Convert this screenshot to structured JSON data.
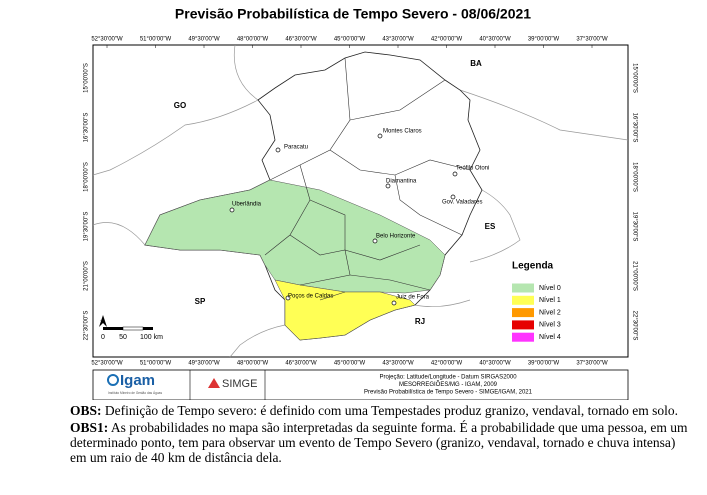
{
  "title": "Previsão Probabilística de Tempo Severo - 08/06/2021",
  "longitude_labels": [
    "52°30'00\"W",
    "51°00'00\"W",
    "49°30'00\"W",
    "48°00'00\"W",
    "46°30'00\"W",
    "45°00'00\"W",
    "43°30'00\"W",
    "42°00'00\"W",
    "40°30'00\"W",
    "39°00'00\"W",
    "37°30'00\"W"
  ],
  "latitude_labels": [
    "15°00'00\"S",
    "16°30'00\"S",
    "18°00'00\"S",
    "19°30'00\"S",
    "21°00'00\"S",
    "22°30'00\"S"
  ],
  "states": [
    "BA",
    "GO",
    "ES",
    "SP",
    "RJ"
  ],
  "cities": [
    "Montes Claros",
    "Paracatu",
    "Teófilo Otoni",
    "Diamantina",
    "Gov. Valadares",
    "Uberlândia",
    "Belo Horizonte",
    "Poços de Caldas",
    "Juiz de Fora"
  ],
  "legend": {
    "title": "Legenda",
    "items": [
      {
        "label": "Nível 0",
        "color": "#b5e6b0"
      },
      {
        "label": "Nível 1",
        "color": "#ffff55"
      },
      {
        "label": "Nível 2",
        "color": "#ff9900"
      },
      {
        "label": "Nível 3",
        "color": "#e60000"
      },
      {
        "label": "Nível 4",
        "color": "#ff33ff"
      }
    ]
  },
  "scale_labels": [
    "0",
    "50",
    "100 km"
  ],
  "logos": {
    "igam": "Igam",
    "igam_subtitle": "Instituto Mineiro de Gestão das Águas",
    "simge": "SIMGE"
  },
  "credits": [
    "Projeção: Latitude/Longitude - Datum SIRGAS2000",
    "MESORREGIÕES/MG - IGAM, 2009",
    "Previsão Probabilística de Tempo Severo - SIMGE/IGAM, 2021"
  ],
  "notes": [
    {
      "label": "OBS:",
      "text": "Definição de Tempo severo: é definido com uma Tempestades produz granizo, vendaval, tornado em solo."
    },
    {
      "label": "OBS1:",
      "text": "As probabilidades no mapa são interpretadas da seguinte forma. É a probabilidade que uma pessoa, em um determinado ponto, tem para observar um evento de Tempo Severo (granizo, vendaval, tornado e chuva intensa) em um raio de 40 km de distância dela."
    }
  ]
}
